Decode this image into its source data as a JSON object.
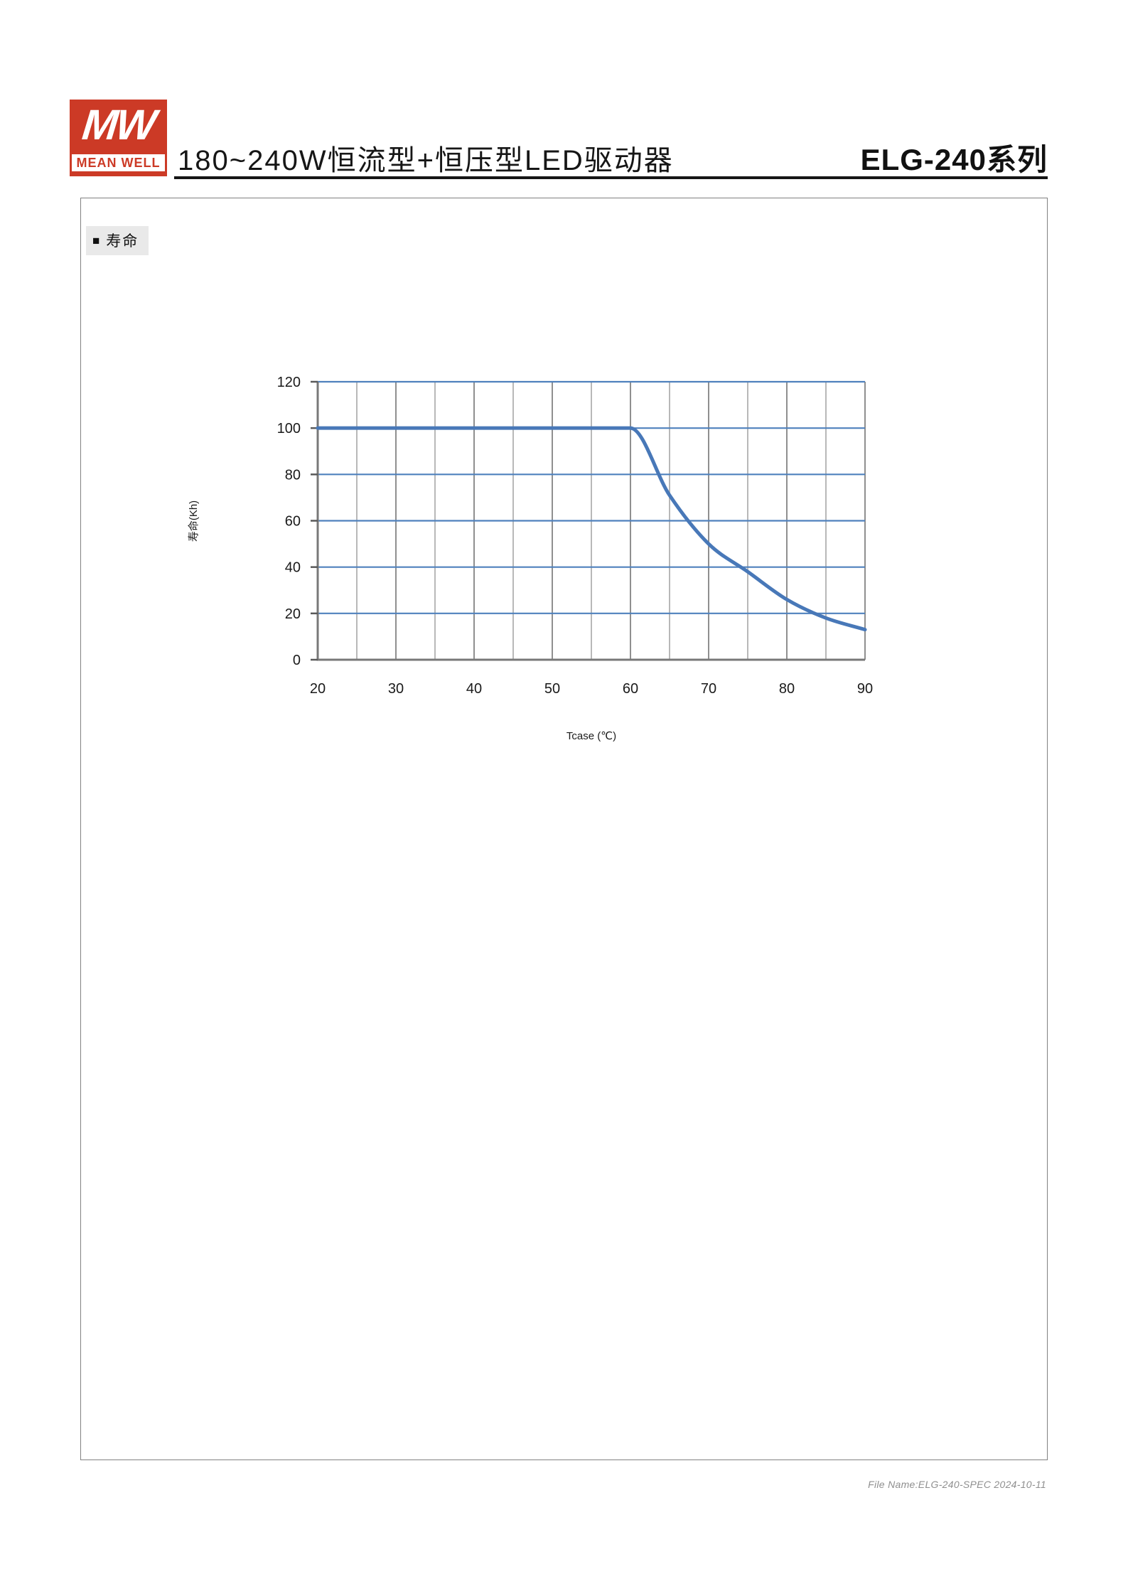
{
  "header": {
    "logo_mw": "MW",
    "logo_brand": "MEAN WELL",
    "title_main": "180~240W恒流型+恒压型LED驱动器",
    "title_series": "ELG-240系列"
  },
  "section": {
    "bullet": "■",
    "label": "寿命"
  },
  "footer": {
    "note": "File Name:ELG-240-SPEC  2024-10-11"
  },
  "chart_data": {
    "type": "line",
    "title": "",
    "xlabel": "Tcase (℃)",
    "ylabel": "寿命(Kh)",
    "x_min": 20,
    "x_max": 90,
    "x_minor_step": 5,
    "x_ticks": [
      20,
      30,
      40,
      50,
      60,
      70,
      80,
      90
    ],
    "y_min": 0,
    "y_max": 120,
    "y_ticks": [
      0,
      20,
      40,
      60,
      80,
      100,
      120
    ],
    "grid": "on",
    "legend": "none",
    "colors": {
      "h_grid": "#4f81bd",
      "v_grid_major": "#8f8f8f",
      "v_grid_minor": "#b8b8b8",
      "axis": "#787878",
      "tick": "#595959",
      "curve": "#4878b8"
    },
    "series": [
      {
        "name": "寿命",
        "points": [
          [
            20,
            100
          ],
          [
            60,
            100
          ],
          [
            65,
            71
          ],
          [
            70,
            50
          ],
          [
            75,
            38
          ],
          [
            80,
            26
          ],
          [
            85,
            18
          ],
          [
            90,
            13
          ]
        ]
      }
    ]
  }
}
